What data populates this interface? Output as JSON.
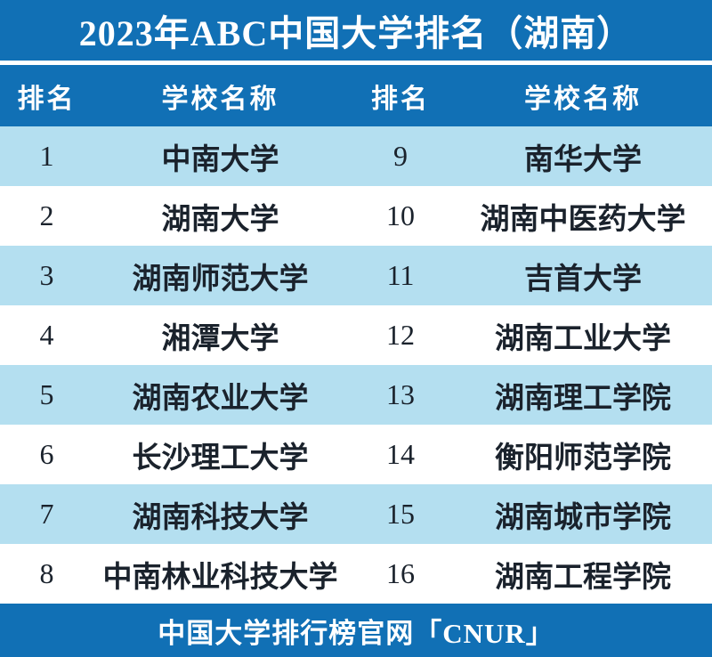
{
  "title": "2023年ABC中国大学排名（湖南）",
  "table": {
    "headers": [
      "排名",
      "学校名称",
      "排名",
      "学校名称"
    ],
    "rows": [
      {
        "rank_left": "1",
        "school_left": "中南大学",
        "rank_right": "9",
        "school_right": "南华大学"
      },
      {
        "rank_left": "2",
        "school_left": "湖南大学",
        "rank_right": "10",
        "school_right": "湖南中医药大学"
      },
      {
        "rank_left": "3",
        "school_left": "湖南师范大学",
        "rank_right": "11",
        "school_right": "吉首大学"
      },
      {
        "rank_left": "4",
        "school_left": "湘潭大学",
        "rank_right": "12",
        "school_right": "湖南工业大学"
      },
      {
        "rank_left": "5",
        "school_left": "湖南农业大学",
        "rank_right": "13",
        "school_right": "湖南理工学院"
      },
      {
        "rank_left": "6",
        "school_left": "长沙理工大学",
        "rank_right": "14",
        "school_right": "衡阳师范学院"
      },
      {
        "rank_left": "7",
        "school_left": "湖南科技大学",
        "rank_right": "15",
        "school_right": "湖南城市学院"
      },
      {
        "rank_left": "8",
        "school_left": "中南林业科技大学",
        "rank_right": "16",
        "school_right": "湖南工程学院"
      }
    ]
  },
  "footer": "中国大学排行榜官网「CNUR」",
  "colors": {
    "header_blue": "#1170b5",
    "row_light_blue": "#b4dff0",
    "row_white": "#ffffff",
    "text_dark": "#1a222c",
    "text_white": "#ffffff"
  },
  "chart_data": {
    "type": "table",
    "title": "2023年ABC中国大学排名（湖南）",
    "columns": [
      "排名",
      "学校名称",
      "排名",
      "学校名称"
    ],
    "rows": [
      [
        "1",
        "中南大学",
        "9",
        "南华大学"
      ],
      [
        "2",
        "湖南大学",
        "10",
        "湖南中医药大学"
      ],
      [
        "3",
        "湖南师范大学",
        "11",
        "吉首大学"
      ],
      [
        "4",
        "湘潭大学",
        "12",
        "湖南工业大学"
      ],
      [
        "5",
        "湖南农业大学",
        "13",
        "湖南理工学院"
      ],
      [
        "6",
        "长沙理工大学",
        "14",
        "衡阳师范学院"
      ],
      [
        "7",
        "湖南科技大学",
        "15",
        "湖南城市学院"
      ],
      [
        "8",
        "中南林业科技大学",
        "16",
        "湖南工程学院"
      ]
    ],
    "source": "中国大学排行榜官网「CNUR」",
    "layout_hints": {
      "row_striping": "odd rows light blue, even rows white",
      "header_style": "white bold text on blue background"
    }
  }
}
